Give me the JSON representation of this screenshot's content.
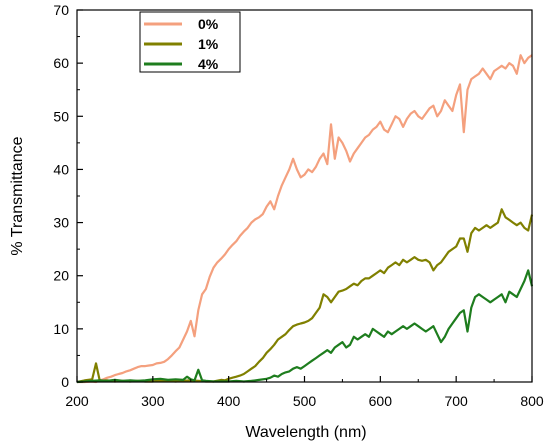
{
  "chart_data": {
    "type": "line",
    "title": "",
    "xlabel": "Wavelength (nm)",
    "ylabel": "% Transmittance",
    "xlim": [
      200,
      800
    ],
    "ylim": [
      0,
      70
    ],
    "xticks": [
      200,
      300,
      400,
      500,
      600,
      700,
      800
    ],
    "yticks": [
      0,
      10,
      20,
      30,
      40,
      50,
      60,
      70
    ],
    "grid": false,
    "legend_position": "top-left",
    "series": [
      {
        "name": "0%",
        "color": "#f4a07e",
        "x": [
          200,
          210,
          220,
          225,
          230,
          235,
          240,
          245,
          250,
          255,
          260,
          265,
          270,
          275,
          280,
          285,
          290,
          295,
          300,
          305,
          310,
          315,
          320,
          325,
          330,
          335,
          340,
          345,
          350,
          355,
          360,
          365,
          370,
          375,
          380,
          385,
          390,
          395,
          400,
          405,
          410,
          415,
          420,
          425,
          430,
          435,
          440,
          445,
          450,
          455,
          460,
          465,
          470,
          475,
          480,
          485,
          490,
          495,
          500,
          505,
          510,
          515,
          520,
          525,
          530,
          535,
          540,
          545,
          550,
          555,
          560,
          565,
          570,
          575,
          580,
          585,
          590,
          595,
          600,
          605,
          610,
          615,
          620,
          625,
          630,
          635,
          640,
          645,
          650,
          655,
          660,
          665,
          670,
          675,
          680,
          685,
          690,
          695,
          700,
          705,
          710,
          715,
          720,
          725,
          730,
          735,
          740,
          745,
          750,
          755,
          760,
          765,
          770,
          775,
          780,
          785,
          790,
          795,
          800
        ],
        "y": [
          0,
          0,
          0.1,
          0,
          0.3,
          0.5,
          0.8,
          1.0,
          1.3,
          1.5,
          1.7,
          2.0,
          2.2,
          2.5,
          2.8,
          3.0,
          3.0,
          3.1,
          3.2,
          3.5,
          3.6,
          3.8,
          4.3,
          5.0,
          5.8,
          6.5,
          8.0,
          9.5,
          11.5,
          8.6,
          13.5,
          16.5,
          17.5,
          19.8,
          21.5,
          22.5,
          23.2,
          24.0,
          25.0,
          25.8,
          26.5,
          27.5,
          28.3,
          29.0,
          30.0,
          30.6,
          31.0,
          31.6,
          33.0,
          34.0,
          32.5,
          35.0,
          37.0,
          38.5,
          40.0,
          42.0,
          40.0,
          38.5,
          39.0,
          40.0,
          39.5,
          40.5,
          42.0,
          43.0,
          41.0,
          48.5,
          42.0,
          46.0,
          45.0,
          43.5,
          41.5,
          43.0,
          44.0,
          45.0,
          46.0,
          46.5,
          47.5,
          48.0,
          49.0,
          47.5,
          47.0,
          48.5,
          50.0,
          49.5,
          48.0,
          49.5,
          50.5,
          51.0,
          50.0,
          49.5,
          50.5,
          51.5,
          52.0,
          50.0,
          51.0,
          53.0,
          52.0,
          51.0,
          54.0,
          56.0,
          47.0,
          55.0,
          57.0,
          57.5,
          58.0,
          59.0,
          58.0,
          57.0,
          58.5,
          59.0,
          59.5,
          59.0,
          60.0,
          59.5,
          58.0,
          61.5,
          60.0,
          61.0,
          61.5
        ]
      },
      {
        "name": "1%",
        "color": "#808000",
        "x": [
          200,
          210,
          220,
          225,
          230,
          240,
          250,
          260,
          270,
          280,
          290,
          300,
          310,
          320,
          330,
          340,
          350,
          360,
          370,
          380,
          390,
          395,
          400,
          405,
          410,
          415,
          420,
          425,
          430,
          435,
          440,
          445,
          450,
          455,
          460,
          465,
          470,
          475,
          480,
          485,
          490,
          495,
          500,
          505,
          510,
          515,
          520,
          525,
          530,
          535,
          540,
          545,
          550,
          555,
          560,
          565,
          570,
          575,
          580,
          585,
          590,
          595,
          600,
          605,
          610,
          615,
          620,
          625,
          630,
          635,
          640,
          645,
          650,
          655,
          660,
          665,
          670,
          675,
          680,
          685,
          690,
          695,
          700,
          705,
          710,
          715,
          720,
          725,
          730,
          735,
          740,
          745,
          750,
          755,
          760,
          765,
          770,
          775,
          780,
          785,
          790,
          795,
          800
        ],
        "y": [
          0,
          0.3,
          0.5,
          3.5,
          0.2,
          0.3,
          0.1,
          0.2,
          0.1,
          0.2,
          0.1,
          0.1,
          0.3,
          0.2,
          0.1,
          0.2,
          0.3,
          0.2,
          0.1,
          0.1,
          0.4,
          0.3,
          0.6,
          0.8,
          1.0,
          1.2,
          1.5,
          2.0,
          2.5,
          3.0,
          3.8,
          4.5,
          5.5,
          6.2,
          7.0,
          8.0,
          8.5,
          9.0,
          9.8,
          10.5,
          10.8,
          11.0,
          11.2,
          11.5,
          12.0,
          13.0,
          14.0,
          16.5,
          16.0,
          15.0,
          16.0,
          17.0,
          17.2,
          17.5,
          18.0,
          18.5,
          18.2,
          19.0,
          19.5,
          19.5,
          20.0,
          20.5,
          21.0,
          20.5,
          21.5,
          22.0,
          22.5,
          22.0,
          23.0,
          22.5,
          23.0,
          23.5,
          23.0,
          22.8,
          23.0,
          22.5,
          21.0,
          22.0,
          22.5,
          23.5,
          24.5,
          25.0,
          25.5,
          27.0,
          27.0,
          24.5,
          28.0,
          29.0,
          28.5,
          29.0,
          29.5,
          29.0,
          29.5,
          30.0,
          32.5,
          31.0,
          30.5,
          30.0,
          29.5,
          30.0,
          29.0,
          28.5,
          31.5
        ]
      },
      {
        "name": "4%",
        "color": "#1e7d1e",
        "x": [
          200,
          210,
          220,
          230,
          240,
          250,
          260,
          270,
          280,
          290,
          300,
          310,
          320,
          330,
          340,
          345,
          350,
          355,
          360,
          365,
          370,
          380,
          390,
          400,
          410,
          420,
          430,
          440,
          450,
          455,
          460,
          465,
          470,
          475,
          480,
          485,
          490,
          495,
          500,
          505,
          510,
          515,
          520,
          525,
          530,
          535,
          540,
          545,
          550,
          555,
          560,
          565,
          570,
          575,
          580,
          585,
          590,
          595,
          600,
          605,
          610,
          615,
          620,
          625,
          630,
          635,
          640,
          645,
          650,
          655,
          660,
          665,
          670,
          675,
          680,
          685,
          690,
          695,
          700,
          705,
          710,
          715,
          720,
          725,
          730,
          735,
          740,
          745,
          750,
          755,
          760,
          765,
          770,
          775,
          780,
          785,
          790,
          795,
          800
        ],
        "y": [
          0,
          0.1,
          0.2,
          0.3,
          0.2,
          0.4,
          0.2,
          0.3,
          0.2,
          0.3,
          0.5,
          0.6,
          0.4,
          0.5,
          0.4,
          1.0,
          0.5,
          0.3,
          2.3,
          0.3,
          0.2,
          0.1,
          0.1,
          0.1,
          0.2,
          0.1,
          0.2,
          0.4,
          0.6,
          0.8,
          1.2,
          1.0,
          1.5,
          1.8,
          2.0,
          2.5,
          2.8,
          2.5,
          3.0,
          3.5,
          4.0,
          4.5,
          5.0,
          5.5,
          6.0,
          5.5,
          6.5,
          7.0,
          7.5,
          6.5,
          7.0,
          8.5,
          8.0,
          8.5,
          9.0,
          8.5,
          10.0,
          9.5,
          9.0,
          8.5,
          9.5,
          9.0,
          9.5,
          10.0,
          10.5,
          10.0,
          10.5,
          11.0,
          10.5,
          10.0,
          9.5,
          10.0,
          10.5,
          9.0,
          7.5,
          8.5,
          10.0,
          11.0,
          12.0,
          13.0,
          13.5,
          9.5,
          14.0,
          16.0,
          16.5,
          16.0,
          15.5,
          15.0,
          15.5,
          16.0,
          16.5,
          15.0,
          17.0,
          16.5,
          16.0,
          17.5,
          19.0,
          21.0,
          18.0
        ]
      }
    ]
  }
}
